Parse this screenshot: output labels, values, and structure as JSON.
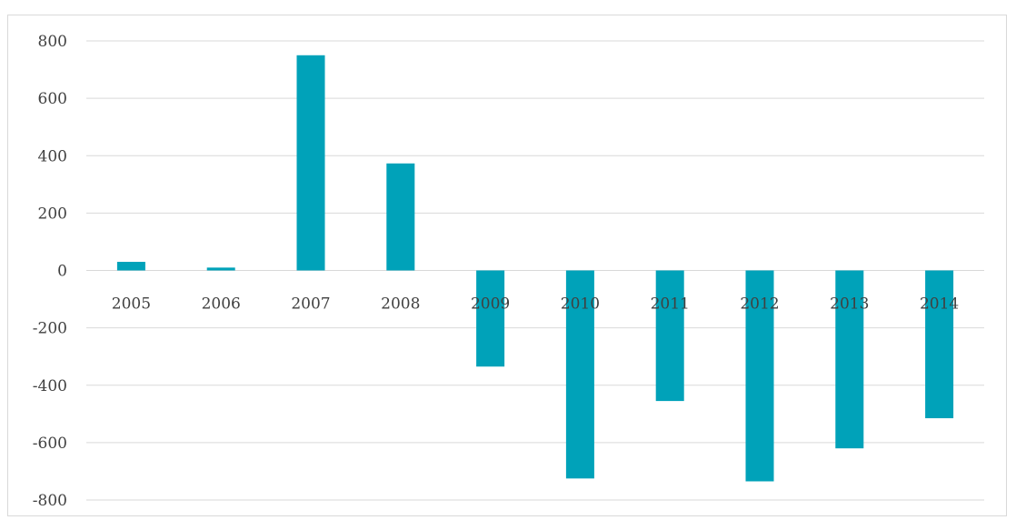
{
  "chart_data": {
    "type": "bar",
    "title": "",
    "xlabel": "",
    "ylabel": "",
    "categories": [
      "2005",
      "2006",
      "2007",
      "2008",
      "2009",
      "2010",
      "2011",
      "2012",
      "2013",
      "2014"
    ],
    "series": [
      {
        "values": [
          30,
          10,
          750,
          373,
          -335,
          -725,
          -455,
          -735,
          -620,
          -515
        ]
      }
    ],
    "ylim": [
      -800,
      800
    ],
    "yticks": [
      "800",
      "600",
      "400",
      "200",
      "0",
      "-200",
      "-400",
      "-600",
      "-800"
    ],
    "grid": true,
    "legend": "none",
    "colors": {
      "bar": "#00a2b9",
      "grid": "#d9d9d9",
      "text": "#404040"
    }
  }
}
